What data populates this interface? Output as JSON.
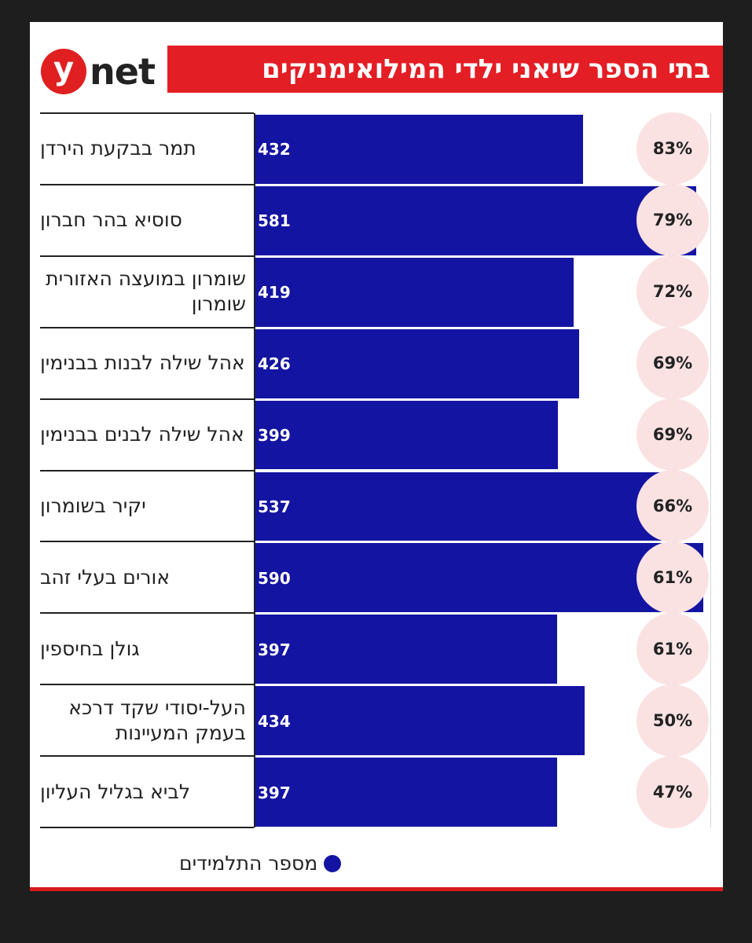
{
  "header": {
    "logo_letter": "y",
    "logo_word": "net",
    "title": "בתי הספר שיאני ילדי המילואימניקים"
  },
  "colors": {
    "accent_red": "#e31e24",
    "bar_blue": "#1414a3",
    "circle_fill": "#fbe2e2"
  },
  "chart_data": {
    "type": "bar",
    "orientation": "horizontal",
    "title": "בתי הספר שיאני ילדי המילואימניקים",
    "categories": [
      "תמר בבקעת הירדן",
      "סוסיא בהר חברון",
      "שומרון במועצה האזורית שומרון",
      "אהל שילה לבנות בבנימין",
      "אהל שילה לבנים בבנימין",
      "יקיר בשומרון",
      "אורים בעלי זהב",
      "גולן בחיספין",
      "העל-יסודי שקד דרכא בעמק המעיינות",
      "לביא בגליל העליון"
    ],
    "series": [
      {
        "name": "מספר התלמידים",
        "values": [
          432,
          581,
          419,
          426,
          399,
          537,
          590,
          397,
          434,
          397
        ]
      }
    ],
    "percentages": [
      "83%",
      "79%",
      "72%",
      "69%",
      "69%",
      "66%",
      "61%",
      "61%",
      "50%",
      "47%"
    ],
    "xlim": [
      0,
      590
    ],
    "legend": "bottom"
  },
  "legend": {
    "label": "מספר התלמידים"
  }
}
